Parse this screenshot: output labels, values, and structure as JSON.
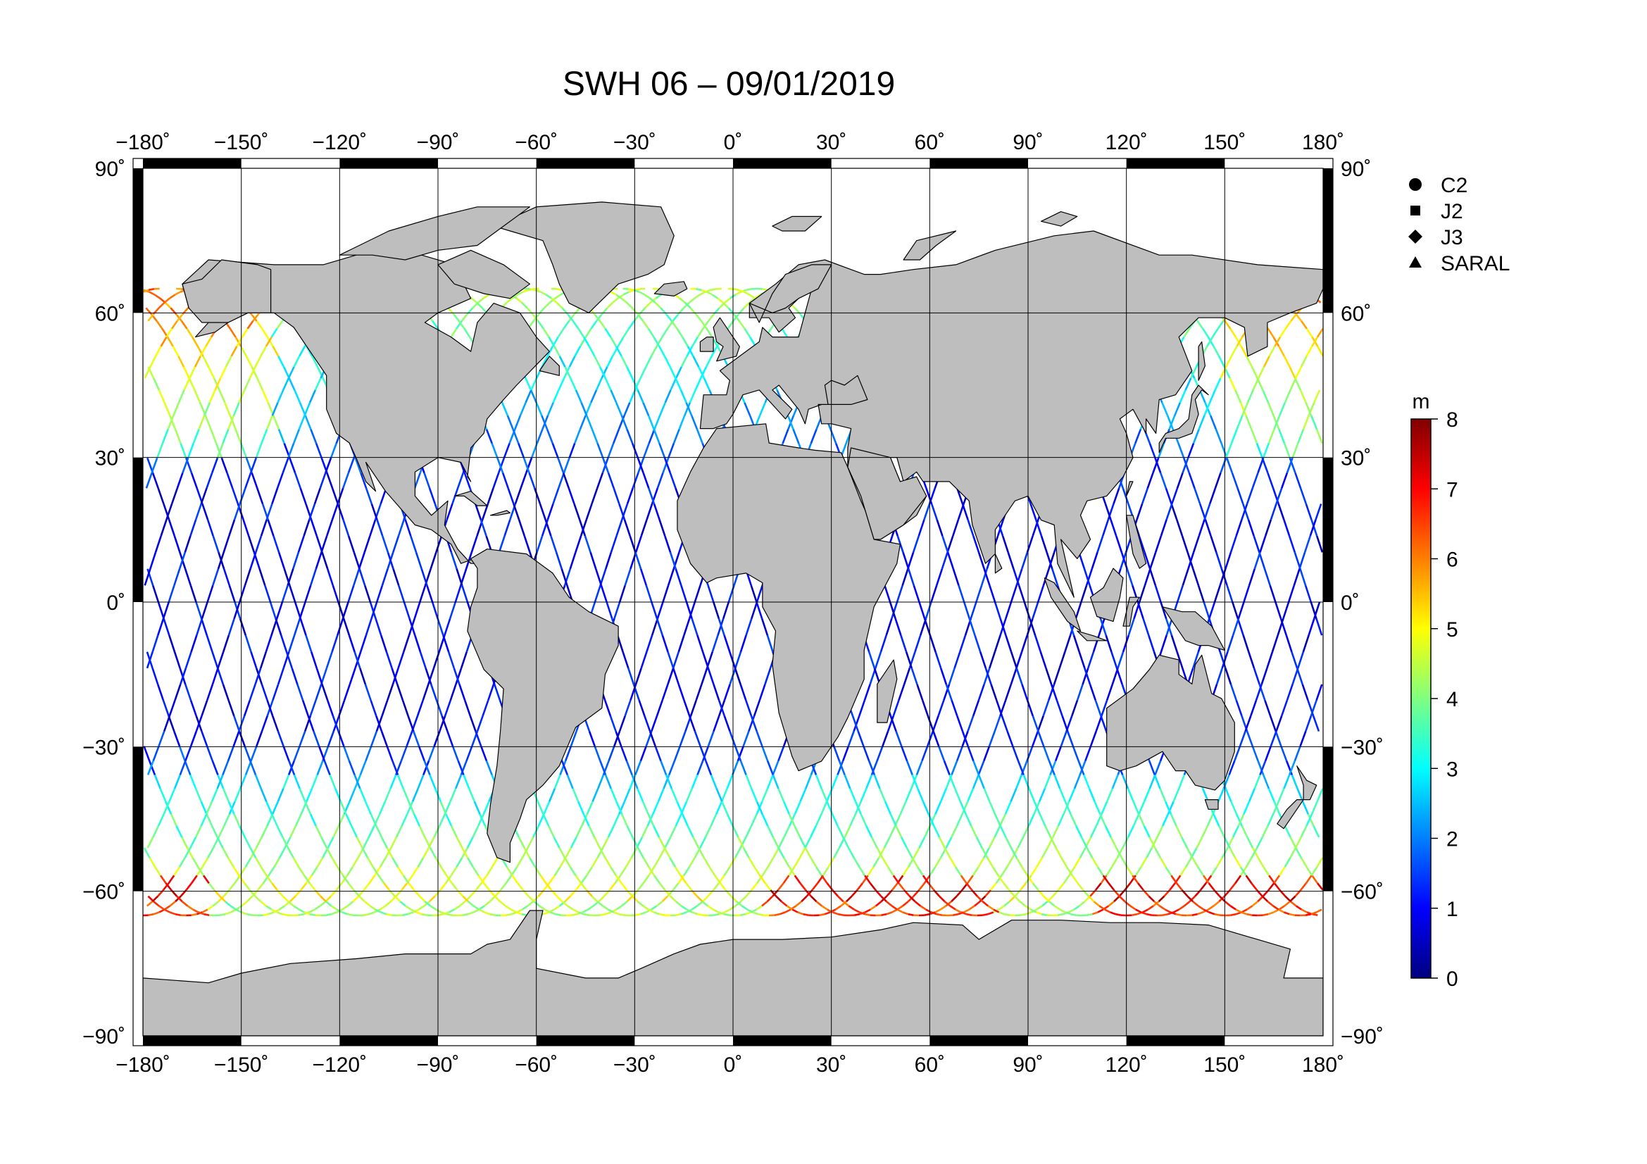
{
  "title": "SWH 06 – 09/01/2019",
  "map": {
    "lon_range": [
      -180,
      180
    ],
    "lat_range": [
      -90,
      90
    ],
    "lon_ticks": [
      "−180˚",
      "−150˚",
      "−120˚",
      "−90˚",
      "−60˚",
      "−30˚",
      "0˚",
      "30˚",
      "60˚",
      "90˚",
      "120˚",
      "150˚",
      "180˚"
    ],
    "lat_ticks_left": [
      "90˚",
      "60˚",
      "30˚",
      "0˚",
      "−30˚",
      "−60˚",
      "−90˚"
    ],
    "lat_ticks_right": [
      "90˚",
      "60˚",
      "30˚",
      "0˚",
      "−30˚",
      "−60˚",
      "−90˚"
    ],
    "land_color": "#bebebe",
    "ocean_color": "#ffffff",
    "grid": true,
    "satellite_tracks": "colored by SWH value along ground tracks between about 66S and 66N"
  },
  "legend": {
    "placement": "top-right",
    "items": [
      {
        "symbol": "circle",
        "label": "C2"
      },
      {
        "symbol": "square",
        "label": "J2"
      },
      {
        "symbol": "diamond",
        "label": "J3"
      },
      {
        "symbol": "triangle",
        "label": "SARAL"
      }
    ]
  },
  "colorbar": {
    "unit": "m",
    "min": 0,
    "max": 8,
    "tick_labels": [
      "8",
      "7",
      "6",
      "5",
      "4",
      "3",
      "2",
      "1",
      "0"
    ],
    "colormap": [
      "#00007f",
      "#0000ff",
      "#007fff",
      "#00ffff",
      "#7fff7f",
      "#ffff00",
      "#ff7f00",
      "#ff0000",
      "#7f0000"
    ]
  }
}
